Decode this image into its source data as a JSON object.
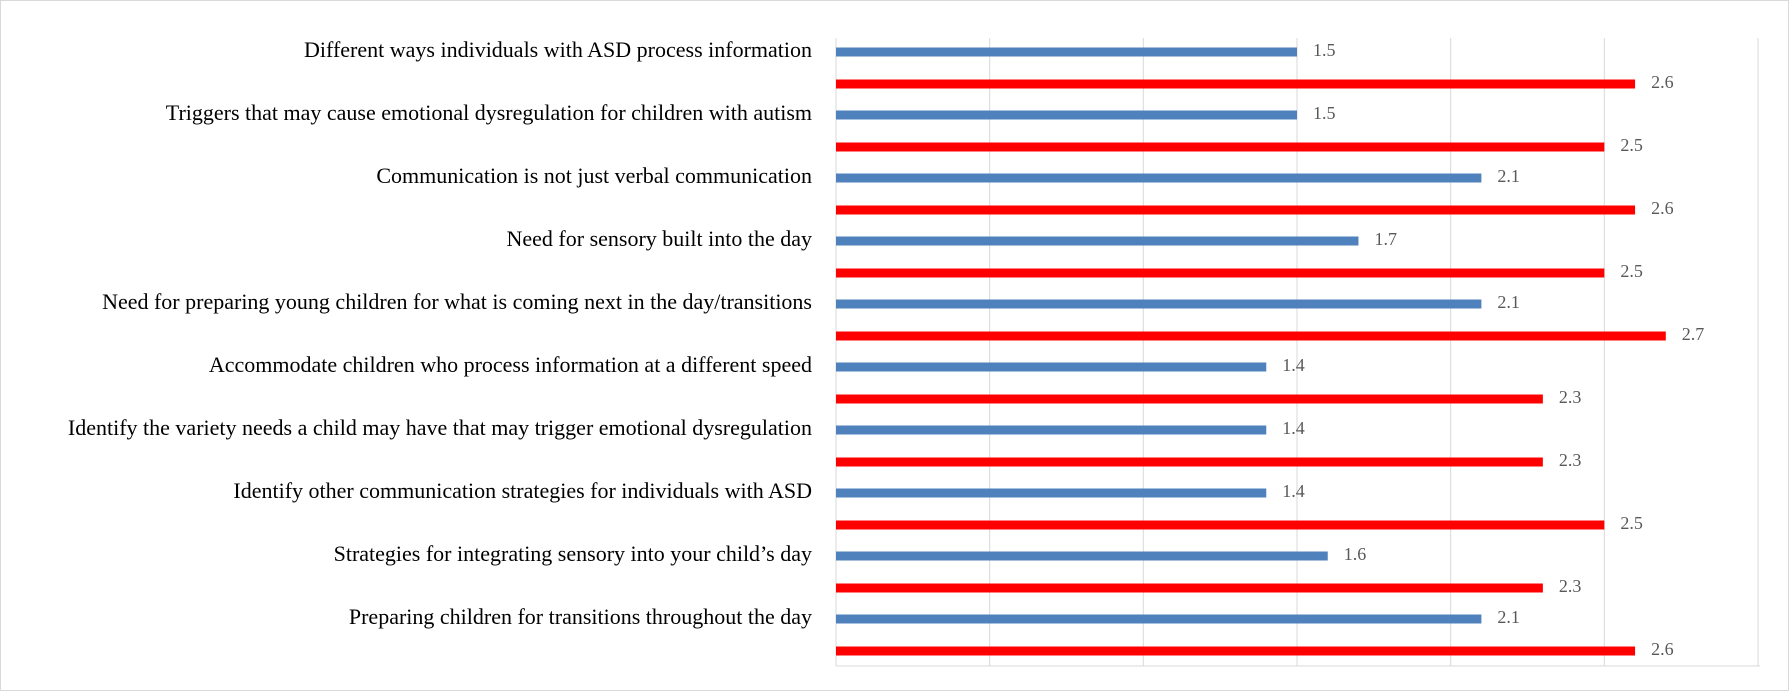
{
  "chart_data": {
    "type": "bar",
    "orientation": "horizontal",
    "categories": [
      "Different ways individuals with ASD process information",
      "Triggers that may cause emotional dysregulation for children with autism",
      "Communication is not just verbal communication",
      "Need for sensory built into the day",
      "Need for preparing young children for what is coming next in the day/transitions",
      "Accommodate children who process information at a different speed",
      "Identify the variety needs a child may have that may trigger emotional dysregulation",
      "Identify other communication strategies for individuals with ASD",
      "Strategies for integrating sensory into your child’s day",
      "Preparing children for transitions throughout the day"
    ],
    "series": [
      {
        "color": "#4f81bd",
        "values": [
          1.5,
          1.5,
          2.1,
          1.7,
          2.1,
          1.4,
          1.4,
          1.4,
          1.6,
          2.1
        ]
      },
      {
        "color": "#ff0000",
        "values": [
          2.6,
          2.5,
          2.6,
          2.5,
          2.7,
          2.3,
          2.3,
          2.5,
          2.3,
          2.6
        ]
      }
    ],
    "xlim": [
      0,
      3
    ],
    "xticks": [
      0,
      0.5,
      1,
      1.5,
      2,
      2.5,
      3
    ],
    "grid": true,
    "tick_labels": false
  }
}
